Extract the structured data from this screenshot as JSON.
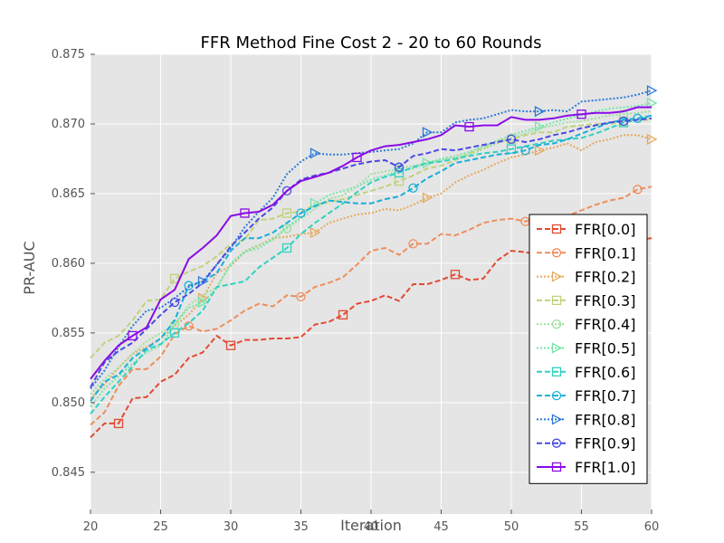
{
  "chart_data": {
    "type": "line",
    "title": "FFR Method Fine Cost 2 - 20 to 60 Rounds",
    "xlabel": "Iteration",
    "ylabel": "PR-AUC",
    "xlim": [
      20,
      60
    ],
    "ylim": [
      0.842,
      0.875
    ],
    "xticks": [
      20,
      25,
      30,
      35,
      40,
      45,
      50,
      55,
      60
    ],
    "yticks": [
      0.845,
      0.85,
      0.855,
      0.86,
      0.865,
      0.87,
      0.875
    ],
    "ytick_labels": [
      "0.845",
      "0.850",
      "0.855",
      "0.860",
      "0.865",
      "0.870",
      "0.875"
    ],
    "grid": true,
    "legend_position": "right",
    "x": [
      20,
      21,
      22,
      23,
      24,
      25,
      26,
      27,
      28,
      29,
      30,
      31,
      32,
      33,
      34,
      35,
      36,
      37,
      38,
      39,
      40,
      41,
      42,
      43,
      44,
      45,
      46,
      47,
      48,
      49,
      50,
      51,
      52,
      53,
      54,
      55,
      56,
      57,
      58,
      59,
      60
    ],
    "series": [
      {
        "name": "FFR[0.0]",
        "color": "#e24a33",
        "dash": "dashed",
        "marker": "square",
        "marker_every": 8,
        "marker_start": 2,
        "values": [
          0.8475,
          0.8485,
          0.8485,
          0.8503,
          0.8504,
          0.8515,
          0.852,
          0.8532,
          0.8536,
          0.8548,
          0.8541,
          0.8545,
          0.8545,
          0.8546,
          0.8546,
          0.8547,
          0.8556,
          0.8558,
          0.8563,
          0.8571,
          0.8573,
          0.8577,
          0.8573,
          0.8585,
          0.8585,
          0.8588,
          0.8592,
          0.8588,
          0.8589,
          0.8602,
          0.8609,
          0.8608,
          0.8606,
          0.8609,
          0.8612,
          0.8613,
          0.8614,
          0.8615,
          0.8616,
          0.8617,
          0.8618
        ]
      },
      {
        "name": "FFR[0.1]",
        "color": "#ee8e5c",
        "dash": "dashed",
        "marker": "circle",
        "marker_every": 8,
        "marker_start": 7,
        "values": [
          0.8484,
          0.8493,
          0.8512,
          0.8524,
          0.8524,
          0.8533,
          0.8549,
          0.8555,
          0.8551,
          0.8553,
          0.8559,
          0.8566,
          0.8571,
          0.8569,
          0.8577,
          0.8576,
          0.8583,
          0.8586,
          0.859,
          0.8599,
          0.8609,
          0.8611,
          0.8606,
          0.8614,
          0.8614,
          0.8621,
          0.862,
          0.8624,
          0.8629,
          0.8631,
          0.8632,
          0.863,
          0.8632,
          0.8632,
          0.8634,
          0.8638,
          0.8642,
          0.8645,
          0.8647,
          0.8653,
          0.8655
        ]
      },
      {
        "name": "FFR[0.2]",
        "color": "#e6a95c",
        "dash": "dotted",
        "marker": "triangle-right",
        "marker_every": 8,
        "marker_start": 8,
        "values": [
          0.8503,
          0.8513,
          0.8525,
          0.8535,
          0.854,
          0.8546,
          0.8555,
          0.8563,
          0.8575,
          0.8593,
          0.8598,
          0.8608,
          0.8613,
          0.8618,
          0.8619,
          0.8621,
          0.8622,
          0.8629,
          0.8632,
          0.8635,
          0.8636,
          0.8639,
          0.8638,
          0.8642,
          0.8647,
          0.865,
          0.8658,
          0.8663,
          0.8667,
          0.8672,
          0.8676,
          0.8678,
          0.8681,
          0.8683,
          0.8686,
          0.8681,
          0.8687,
          0.8689,
          0.8692,
          0.8692,
          0.8689
        ]
      },
      {
        "name": "FFR[0.3]",
        "color": "#bfd27c",
        "dash": "dashed",
        "marker": "square",
        "marker_every": 8,
        "marker_start": 6,
        "values": [
          0.8532,
          0.8543,
          0.8548,
          0.8559,
          0.8573,
          0.8574,
          0.8589,
          0.8594,
          0.8598,
          0.8605,
          0.8614,
          0.8617,
          0.8631,
          0.8632,
          0.8636,
          0.8637,
          0.8642,
          0.8644,
          0.8646,
          0.8649,
          0.8652,
          0.8655,
          0.8659,
          0.8663,
          0.8668,
          0.867,
          0.8674,
          0.8679,
          0.8683,
          0.8688,
          0.8689,
          0.8692,
          0.8694,
          0.8694,
          0.8698,
          0.8699,
          0.87,
          0.87,
          0.8702,
          0.8703,
          0.8703
        ]
      },
      {
        "name": "FFR[0.4]",
        "color": "#9ce09c",
        "dash": "dotted",
        "marker": "circle",
        "marker_every": 8,
        "marker_start": 6,
        "values": [
          0.8506,
          0.8517,
          0.8525,
          0.8535,
          0.8544,
          0.855,
          0.8556,
          0.857,
          0.8577,
          0.8583,
          0.8599,
          0.8609,
          0.8613,
          0.8617,
          0.8625,
          0.8632,
          0.8639,
          0.8646,
          0.8649,
          0.8655,
          0.8664,
          0.8666,
          0.8668,
          0.867,
          0.8672,
          0.8674,
          0.8676,
          0.8678,
          0.8682,
          0.8686,
          0.869,
          0.8693,
          0.8697,
          0.8699,
          0.8701,
          0.8702,
          0.8704,
          0.8706,
          0.8707,
          0.8708,
          0.8709
        ]
      },
      {
        "name": "FFR[0.5]",
        "color": "#74e6a8",
        "dash": "dotted",
        "marker": "triangle-right",
        "marker_every": 8,
        "marker_start": 8,
        "values": [
          0.8497,
          0.851,
          0.8519,
          0.8528,
          0.8536,
          0.8541,
          0.8556,
          0.8568,
          0.8572,
          0.8582,
          0.86,
          0.8608,
          0.8611,
          0.8617,
          0.8626,
          0.8633,
          0.8643,
          0.8649,
          0.8652,
          0.8655,
          0.866,
          0.8663,
          0.8666,
          0.8668,
          0.8672,
          0.8675,
          0.8677,
          0.868,
          0.8684,
          0.8688,
          0.8692,
          0.8695,
          0.8698,
          0.8701,
          0.8704,
          0.8706,
          0.8709,
          0.8711,
          0.8712,
          0.8713,
          0.8715
        ]
      },
      {
        "name": "FFR[0.6]",
        "color": "#30d2c0",
        "dash": "dashed",
        "marker": "square",
        "marker_every": 8,
        "marker_start": 6,
        "values": [
          0.8492,
          0.8504,
          0.8515,
          0.8526,
          0.8538,
          0.8542,
          0.855,
          0.8557,
          0.8566,
          0.8583,
          0.8585,
          0.8587,
          0.8597,
          0.8604,
          0.8611,
          0.8621,
          0.8629,
          0.8636,
          0.8643,
          0.8651,
          0.8658,
          0.8662,
          0.8665,
          0.8669,
          0.8672,
          0.8673,
          0.8675,
          0.8677,
          0.8679,
          0.868,
          0.8682,
          0.8684,
          0.8686,
          0.8688,
          0.8689,
          0.869,
          0.8693,
          0.8697,
          0.8701,
          0.8703,
          0.8706
        ]
      },
      {
        "name": "FFR[0.7]",
        "color": "#18b0d8",
        "dash": "dashed",
        "marker": "circle",
        "marker_every": 8,
        "marker_start": 7,
        "values": [
          0.8501,
          0.8515,
          0.852,
          0.8532,
          0.8539,
          0.8546,
          0.8559,
          0.8584,
          0.8587,
          0.8593,
          0.8609,
          0.8618,
          0.8618,
          0.8622,
          0.8629,
          0.8636,
          0.8641,
          0.8645,
          0.8644,
          0.8643,
          0.8643,
          0.8646,
          0.8648,
          0.8654,
          0.8661,
          0.8666,
          0.8672,
          0.8674,
          0.8676,
          0.8678,
          0.8679,
          0.8681,
          0.8685,
          0.8686,
          0.8689,
          0.8693,
          0.8697,
          0.8701,
          0.8703,
          0.8704,
          0.8706
        ]
      },
      {
        "name": "FFR[0.8]",
        "color": "#2a7ad8",
        "dash": "dotted",
        "marker": "triangle-right",
        "marker_every": 8,
        "marker_start": 8,
        "values": [
          0.851,
          0.8523,
          0.854,
          0.8555,
          0.8566,
          0.8568,
          0.8575,
          0.8583,
          0.8587,
          0.8599,
          0.8611,
          0.8626,
          0.8637,
          0.8647,
          0.8664,
          0.8673,
          0.8679,
          0.8678,
          0.8678,
          0.8679,
          0.868,
          0.8681,
          0.8682,
          0.8686,
          0.8694,
          0.8694,
          0.8701,
          0.8703,
          0.8704,
          0.8707,
          0.871,
          0.8709,
          0.8709,
          0.871,
          0.8709,
          0.8716,
          0.8717,
          0.8718,
          0.8719,
          0.8721,
          0.8724
        ]
      },
      {
        "name": "FFR[0.9]",
        "color": "#4a4ae4",
        "dash": "dashed",
        "marker": "circle",
        "marker_every": 8,
        "marker_start": 6,
        "values": [
          0.8511,
          0.8529,
          0.8537,
          0.8543,
          0.8553,
          0.8563,
          0.8572,
          0.8578,
          0.8586,
          0.8599,
          0.8612,
          0.8622,
          0.8632,
          0.864,
          0.8652,
          0.866,
          0.8663,
          0.8665,
          0.8668,
          0.8671,
          0.8673,
          0.8674,
          0.8669,
          0.8677,
          0.8679,
          0.8682,
          0.8681,
          0.8683,
          0.8685,
          0.8687,
          0.8689,
          0.8687,
          0.8689,
          0.8692,
          0.8694,
          0.8697,
          0.8699,
          0.8701,
          0.8702,
          0.8703,
          0.8704
        ]
      },
      {
        "name": "FFR[1.0]",
        "color": "#8a0ae6",
        "dash": "solid",
        "marker": "square",
        "marker_every": 8,
        "marker_start": 3,
        "values": [
          0.8517,
          0.853,
          0.8541,
          0.8548,
          0.8554,
          0.8574,
          0.8581,
          0.8603,
          0.8611,
          0.862,
          0.8634,
          0.8636,
          0.8637,
          0.8642,
          0.8652,
          0.8659,
          0.8662,
          0.8665,
          0.867,
          0.8676,
          0.8681,
          0.8684,
          0.8685,
          0.8687,
          0.8689,
          0.8692,
          0.8699,
          0.8698,
          0.8699,
          0.8699,
          0.8705,
          0.8703,
          0.8703,
          0.8704,
          0.8706,
          0.8707,
          0.8708,
          0.8708,
          0.8709,
          0.8712,
          0.8712
        ]
      }
    ]
  }
}
